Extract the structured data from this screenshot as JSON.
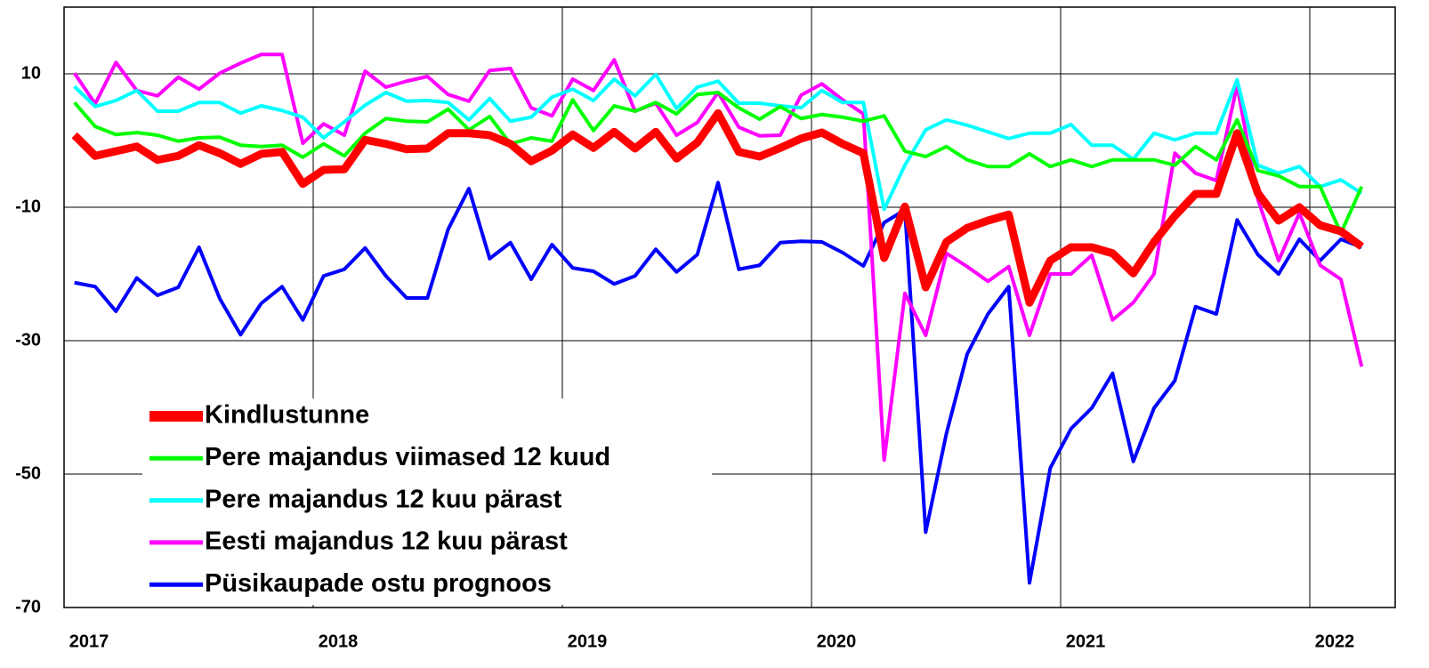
{
  "chart_data": {
    "type": "line",
    "categories": [
      "2017",
      null,
      null,
      null,
      null,
      null,
      null,
      null,
      null,
      null,
      null,
      null,
      "2018",
      null,
      null,
      null,
      null,
      null,
      null,
      null,
      null,
      null,
      null,
      null,
      "2019",
      null,
      null,
      null,
      null,
      null,
      null,
      null,
      null,
      null,
      null,
      null,
      "2020",
      null,
      null,
      null,
      null,
      null,
      null,
      null,
      null,
      null,
      null,
      null,
      "2021",
      null,
      null,
      null,
      null,
      null,
      null,
      null,
      null,
      null,
      null,
      null,
      "2022",
      null,
      null
    ],
    "ylim": [
      -70,
      20
    ],
    "yticks": [
      -70,
      -50,
      -30,
      -10,
      10
    ],
    "grid": true,
    "legend": "lower left",
    "series": [
      {
        "name": "Kindlustunne",
        "color": "#ff0000",
        "values": [
          0.8,
          -2.3,
          -1.6,
          -0.9,
          -2.9,
          -2.3,
          -0.7,
          -1.9,
          -3.5,
          -2.0,
          -1.7,
          -6.5,
          -4.4,
          -4.3,
          0.1,
          -0.5,
          -1.3,
          -1.2,
          1.1,
          1.1,
          0.8,
          -0.5,
          -3.1,
          -1.5,
          0.9,
          -1.1,
          1.3,
          -1.2,
          1.3,
          -2.7,
          -0.3,
          4.1,
          -1.7,
          -2.4,
          -1.1,
          0.3,
          1.2,
          -0.5,
          -1.9,
          -17.6,
          -9.9,
          -22,
          -15.2,
          -13.1,
          -12,
          -11.1,
          -24.3,
          -18,
          -16,
          -16,
          -16.9,
          -19.9,
          -15.2,
          -11.3,
          -8,
          -8,
          1.1,
          -7.9,
          -12,
          -10,
          -12.7,
          -13.6,
          -15.9
        ]
      },
      {
        "name": "Pere majandus viimased 12 kuud",
        "color": "#00ff00",
        "values": [
          5.7,
          2.1,
          0.9,
          1.2,
          0.8,
          -0.1,
          0.4,
          0.5,
          -0.7,
          -0.9,
          -0.7,
          -2.5,
          -0.5,
          -2.3,
          1.1,
          3.3,
          2.9,
          2.8,
          4.7,
          1.6,
          3.6,
          -0.5,
          0.4,
          -0.1,
          6.1,
          1.5,
          5.2,
          4.4,
          5.7,
          4,
          6.9,
          7.2,
          4.9,
          3.2,
          5.1,
          3.3,
          3.9,
          3.5,
          2.9,
          3.7,
          -1.6,
          -2.4,
          -0.9,
          -2.9,
          -3.9,
          -3.9,
          -2,
          -3.9,
          -2.9,
          -3.9,
          -2.9,
          -2.9,
          -2.9,
          -3.7,
          -0.9,
          -2.9,
          3.1,
          -4.5,
          -5.3,
          -6.9,
          -6.9,
          -13.9,
          -6.9
        ]
      },
      {
        "name": "Pere majandus 12 kuu pärast",
        "color": "#00ffff",
        "values": [
          8.1,
          5.1,
          6,
          7.5,
          4.4,
          4.4,
          5.7,
          5.7,
          4.1,
          5.2,
          4.5,
          3.5,
          0.4,
          2.8,
          5.3,
          7.2,
          5.9,
          6,
          5.7,
          3.1,
          6.3,
          2.9,
          3.5,
          6.5,
          7.7,
          6,
          9.2,
          6.7,
          9.9,
          4.8,
          8,
          8.9,
          5.6,
          5.6,
          5.2,
          4.9,
          7.5,
          5.7,
          5.7,
          -10.3,
          -3.7,
          1.6,
          3.1,
          2.3,
          1.3,
          0.3,
          1.1,
          1.1,
          2.4,
          -0.7,
          -0.7,
          -2.8,
          1.1,
          0.1,
          1.1,
          1.1,
          9.1,
          -3.7,
          -4.9,
          -3.9,
          -6.9,
          -5.9,
          -7.9
        ]
      },
      {
        "name": "Eesti majandus 12 kuu pärast",
        "color": "#ff00ff",
        "values": [
          10.1,
          5.5,
          11.7,
          7.5,
          6.7,
          9.5,
          7.7,
          10.1,
          11.6,
          12.9,
          12.9,
          -0.4,
          2.5,
          0.8,
          10.4,
          8,
          8.9,
          9.6,
          6.9,
          5.9,
          10.5,
          10.8,
          4.9,
          3.7,
          9.2,
          7.5,
          12.1,
          4.4,
          5.6,
          0.8,
          2.7,
          7.2,
          2,
          0.7,
          0.8,
          6.8,
          8.5,
          6.1,
          4,
          -47.9,
          -22.9,
          -29.2,
          -16.9,
          -18.9,
          -21.1,
          -18.9,
          -29.2,
          -20,
          -20,
          -17.2,
          -26.9,
          -24.3,
          -20,
          -1.9,
          -4.9,
          -6,
          8.3,
          -8.8,
          -18,
          -10.9,
          -18.7,
          -20.8,
          -33.9
        ]
      },
      {
        "name": "Püsikaupade ostu prognoos",
        "color": "#0000ff",
        "values": [
          -21.3,
          -21.9,
          -25.6,
          -20.6,
          -23.2,
          -22,
          -16,
          -23.7,
          -29.1,
          -24.4,
          -21.9,
          -26.9,
          -20.3,
          -19.3,
          -16.1,
          -20.3,
          -23.6,
          -23.6,
          -13.3,
          -7.2,
          -17.7,
          -15.3,
          -20.8,
          -15.6,
          -19.1,
          -19.6,
          -21.5,
          -20.3,
          -16.3,
          -19.7,
          -17.1,
          -6.3,
          -19.3,
          -18.7,
          -15.3,
          -15.1,
          -15.2,
          -16.8,
          -18.8,
          -12.3,
          -10.4,
          -58.7,
          -43.9,
          -32,
          -26,
          -21.9,
          -66.3,
          -49.1,
          -43.2,
          -40.1,
          -34.9,
          -48.1,
          -40.1,
          -36,
          -24.9,
          -26,
          -11.9,
          -17.1,
          -20,
          -14.8,
          -18,
          -14.8,
          -16
        ]
      }
    ]
  }
}
